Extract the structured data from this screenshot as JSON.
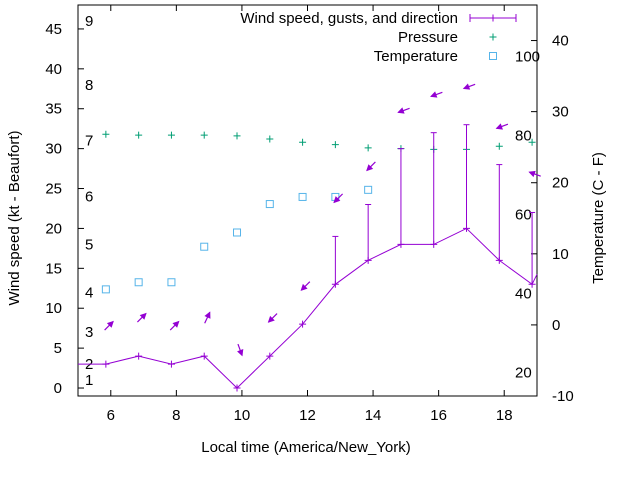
{
  "chart_data": {
    "type": "line",
    "xlabel": "Local time (America/New_York)",
    "ylabel": "Wind speed (kt - Beaufort)",
    "y2label": "Temperature (C - F)",
    "xlim": [
      5,
      19
    ],
    "ylim": [
      -1,
      48
    ],
    "y2lim": [
      -10,
      45
    ],
    "x_ticks": [
      6,
      8,
      10,
      12,
      14,
      16,
      18
    ],
    "y_ticks": [
      0,
      5,
      10,
      15,
      20,
      25,
      30,
      35,
      40,
      45
    ],
    "y2_ticks": [
      -10,
      0,
      10,
      20,
      30,
      40
    ],
    "fahrenheit_ticks": [
      20,
      40,
      60,
      80,
      100
    ],
    "beaufort_labels": [
      "1",
      "2",
      "3",
      "4",
      "5",
      "6",
      "7",
      "8",
      "9"
    ],
    "beaufort_kt": [
      1,
      3,
      7,
      12,
      18,
      24,
      31,
      38,
      46
    ],
    "legend_position": "top-right",
    "series": [
      {
        "name": "Wind speed, gusts, and direction",
        "color": "#9400d3",
        "x": [
          5.85,
          6.85,
          7.85,
          8.85,
          9.85,
          10.85,
          11.85,
          12.85,
          13.85,
          14.85,
          15.85,
          16.85,
          17.85,
          18.85
        ],
        "values": [
          3,
          4,
          3,
          4,
          0,
          4,
          8,
          13,
          16,
          18,
          18,
          20,
          16,
          13
        ],
        "gusts": [
          null,
          null,
          null,
          null,
          null,
          null,
          null,
          19,
          23,
          30,
          32,
          33,
          28,
          22
        ],
        "direction_deg": [
          45,
          45,
          45,
          25,
          160,
          225,
          225,
          225,
          225,
          250,
          250,
          250,
          250,
          290
        ]
      },
      {
        "name": "Pressure",
        "color": "#009e73",
        "x": [
          5.85,
          6.85,
          7.85,
          8.85,
          9.85,
          10.85,
          11.85,
          12.85,
          13.85,
          14.85,
          15.85,
          16.85,
          17.85,
          18.85
        ],
        "values": [
          31.8,
          31.7,
          31.7,
          31.7,
          31.6,
          31.2,
          30.8,
          30.5,
          30.1,
          30.0,
          29.9,
          29.9,
          30.3,
          30.8
        ]
      },
      {
        "name": "Temperature",
        "color": "#56b4e9",
        "x": [
          5.85,
          6.85,
          7.85,
          8.85,
          9.85,
          10.85,
          11.85,
          12.85,
          13.85
        ],
        "values": [
          5,
          6,
          6,
          11,
          13,
          17,
          18,
          18,
          19
        ]
      }
    ]
  }
}
